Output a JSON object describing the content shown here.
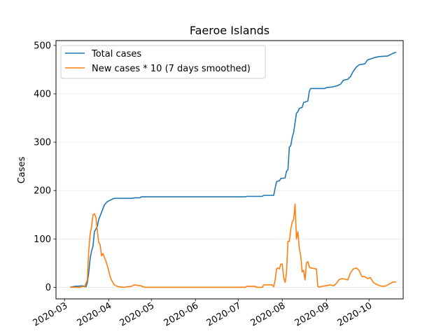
{
  "chart_data": {
    "type": "line",
    "title": "Faeroe Islands",
    "xlabel": "",
    "ylabel": "Cases",
    "x_ticks": [
      "2020-03",
      "2020-04",
      "2020-05",
      "2020-06",
      "2020-07",
      "2020-08",
      "2020-09",
      "2020-10"
    ],
    "y_ticks": [
      "0",
      "100",
      "200",
      "300",
      "400",
      "500"
    ],
    "ylim": [
      -24,
      510
    ],
    "xlim": [
      "2020-02-24",
      "2020-10-25"
    ],
    "grid": "horizontal",
    "legend_position": "top-left",
    "series": [
      {
        "name": "Total cases",
        "color": "#1f77b4",
        "points": [
          [
            "2020-03-05",
            0
          ],
          [
            "2020-03-08",
            2
          ],
          [
            "2020-03-14",
            3
          ],
          [
            "2020-03-16",
            1
          ],
          [
            "2020-03-17",
            9
          ],
          [
            "2020-03-18",
            30
          ],
          [
            "2020-03-19",
            60
          ],
          [
            "2020-03-20",
            75
          ],
          [
            "2020-03-21",
            85
          ],
          [
            "2020-03-22",
            115
          ],
          [
            "2020-03-24",
            125
          ],
          [
            "2020-03-25",
            140
          ],
          [
            "2020-03-27",
            155
          ],
          [
            "2020-03-29",
            170
          ],
          [
            "2020-03-31",
            177
          ],
          [
            "2020-04-02",
            180
          ],
          [
            "2020-04-05",
            184
          ],
          [
            "2020-04-18",
            184
          ],
          [
            "2020-04-19",
            185
          ],
          [
            "2020-04-23",
            185
          ],
          [
            "2020-04-24",
            187
          ],
          [
            "2020-07-06",
            187
          ],
          [
            "2020-07-07",
            188
          ],
          [
            "2020-07-18",
            188
          ],
          [
            "2020-07-19",
            190
          ],
          [
            "2020-07-26",
            190
          ],
          [
            "2020-07-27",
            205
          ],
          [
            "2020-07-28",
            218
          ],
          [
            "2020-07-29",
            220
          ],
          [
            "2020-07-30",
            220
          ],
          [
            "2020-07-31",
            225
          ],
          [
            "2020-08-03",
            226
          ],
          [
            "2020-08-04",
            240
          ],
          [
            "2020-08-05",
            243
          ],
          [
            "2020-08-06",
            290
          ],
          [
            "2020-08-07",
            293
          ],
          [
            "2020-08-08",
            310
          ],
          [
            "2020-08-09",
            320
          ],
          [
            "2020-08-10",
            340
          ],
          [
            "2020-08-11",
            360
          ],
          [
            "2020-08-12",
            363
          ],
          [
            "2020-08-13",
            370
          ],
          [
            "2020-08-15",
            372
          ],
          [
            "2020-08-16",
            382
          ],
          [
            "2020-08-19",
            385
          ],
          [
            "2020-08-20",
            405
          ],
          [
            "2020-08-21",
            411
          ],
          [
            "2020-08-28",
            411
          ],
          [
            "2020-08-31",
            411
          ],
          [
            "2020-09-01",
            413
          ],
          [
            "2020-09-05",
            414
          ],
          [
            "2020-09-09",
            417
          ],
          [
            "2020-09-11",
            420
          ],
          [
            "2020-09-13",
            428
          ],
          [
            "2020-09-16",
            430
          ],
          [
            "2020-09-18",
            436
          ],
          [
            "2020-09-20",
            447
          ],
          [
            "2020-09-22",
            455
          ],
          [
            "2020-09-24",
            460
          ],
          [
            "2020-09-28",
            462
          ],
          [
            "2020-09-30",
            470
          ],
          [
            "2020-10-02",
            472
          ],
          [
            "2020-10-05",
            475
          ],
          [
            "2020-10-08",
            477
          ],
          [
            "2020-10-14",
            478
          ],
          [
            "2020-10-16",
            481
          ],
          [
            "2020-10-18",
            484
          ],
          [
            "2020-10-20",
            486
          ]
        ]
      },
      {
        "name": "New cases * 10 (7 days smoothed)",
        "color": "#ff7f0e",
        "points": [
          [
            "2020-03-05",
            0
          ],
          [
            "2020-03-12",
            0
          ],
          [
            "2020-03-14",
            2
          ],
          [
            "2020-03-15",
            1
          ],
          [
            "2020-03-16",
            8
          ],
          [
            "2020-03-17",
            15
          ],
          [
            "2020-03-18",
            75
          ],
          [
            "2020-03-19",
            110
          ],
          [
            "2020-03-20",
            125
          ],
          [
            "2020-03-21",
            150
          ],
          [
            "2020-03-22",
            152
          ],
          [
            "2020-03-23",
            145
          ],
          [
            "2020-03-24",
            118
          ],
          [
            "2020-03-25",
            93
          ],
          [
            "2020-03-26",
            88
          ],
          [
            "2020-03-27",
            65
          ],
          [
            "2020-03-28",
            70
          ],
          [
            "2020-03-29",
            62
          ],
          [
            "2020-03-30",
            55
          ],
          [
            "2020-03-31",
            45
          ],
          [
            "2020-04-01",
            35
          ],
          [
            "2020-04-02",
            22
          ],
          [
            "2020-04-03",
            15
          ],
          [
            "2020-04-04",
            10
          ],
          [
            "2020-04-05",
            5
          ],
          [
            "2020-04-07",
            2
          ],
          [
            "2020-04-08",
            1
          ],
          [
            "2020-04-12",
            0
          ],
          [
            "2020-04-14",
            1
          ],
          [
            "2020-04-17",
            2
          ],
          [
            "2020-04-19",
            5
          ],
          [
            "2020-04-21",
            4
          ],
          [
            "2020-04-24",
            3
          ],
          [
            "2020-04-25",
            1
          ],
          [
            "2020-04-27",
            0
          ],
          [
            "2020-07-06",
            0
          ],
          [
            "2020-07-07",
            2
          ],
          [
            "2020-07-13",
            2
          ],
          [
            "2020-07-14",
            0
          ],
          [
            "2020-07-18",
            0
          ],
          [
            "2020-07-19",
            5
          ],
          [
            "2020-07-25",
            5
          ],
          [
            "2020-07-26",
            1
          ],
          [
            "2020-07-27",
            15
          ],
          [
            "2020-07-28",
            38
          ],
          [
            "2020-07-29",
            40
          ],
          [
            "2020-07-30",
            38
          ],
          [
            "2020-07-31",
            48
          ],
          [
            "2020-08-01",
            48
          ],
          [
            "2020-08-02",
            20
          ],
          [
            "2020-08-03",
            10
          ],
          [
            "2020-08-04",
            30
          ],
          [
            "2020-08-05",
            95
          ],
          [
            "2020-08-06",
            95
          ],
          [
            "2020-08-07",
            120
          ],
          [
            "2020-08-08",
            135
          ],
          [
            "2020-08-09",
            140
          ],
          [
            "2020-08-10",
            172
          ],
          [
            "2020-08-11",
            100
          ],
          [
            "2020-08-12",
            115
          ],
          [
            "2020-08-13",
            80
          ],
          [
            "2020-08-14",
            65
          ],
          [
            "2020-08-15",
            32
          ],
          [
            "2020-08-16",
            35
          ],
          [
            "2020-08-17",
            15
          ],
          [
            "2020-08-18",
            50
          ],
          [
            "2020-08-19",
            53
          ],
          [
            "2020-08-20",
            42
          ],
          [
            "2020-08-21",
            40
          ],
          [
            "2020-08-25",
            38
          ],
          [
            "2020-08-26",
            2
          ],
          [
            "2020-08-27",
            0
          ],
          [
            "2020-08-29",
            2
          ],
          [
            "2020-09-02",
            4
          ],
          [
            "2020-09-04",
            5
          ],
          [
            "2020-09-06",
            3
          ],
          [
            "2020-09-08",
            8
          ],
          [
            "2020-09-10",
            16
          ],
          [
            "2020-09-12",
            18
          ],
          [
            "2020-09-14",
            17
          ],
          [
            "2020-09-16",
            15
          ],
          [
            "2020-09-18",
            30
          ],
          [
            "2020-09-20",
            38
          ],
          [
            "2020-09-22",
            40
          ],
          [
            "2020-09-24",
            35
          ],
          [
            "2020-09-26",
            22
          ],
          [
            "2020-09-28",
            22
          ],
          [
            "2020-09-30",
            18
          ],
          [
            "2020-10-02",
            20
          ],
          [
            "2020-10-04",
            10
          ],
          [
            "2020-10-07",
            5
          ],
          [
            "2020-10-09",
            3
          ],
          [
            "2020-10-11",
            2
          ],
          [
            "2020-10-13",
            3
          ],
          [
            "2020-10-16",
            8
          ],
          [
            "2020-10-18",
            11
          ],
          [
            "2020-10-20",
            11
          ]
        ]
      }
    ]
  }
}
